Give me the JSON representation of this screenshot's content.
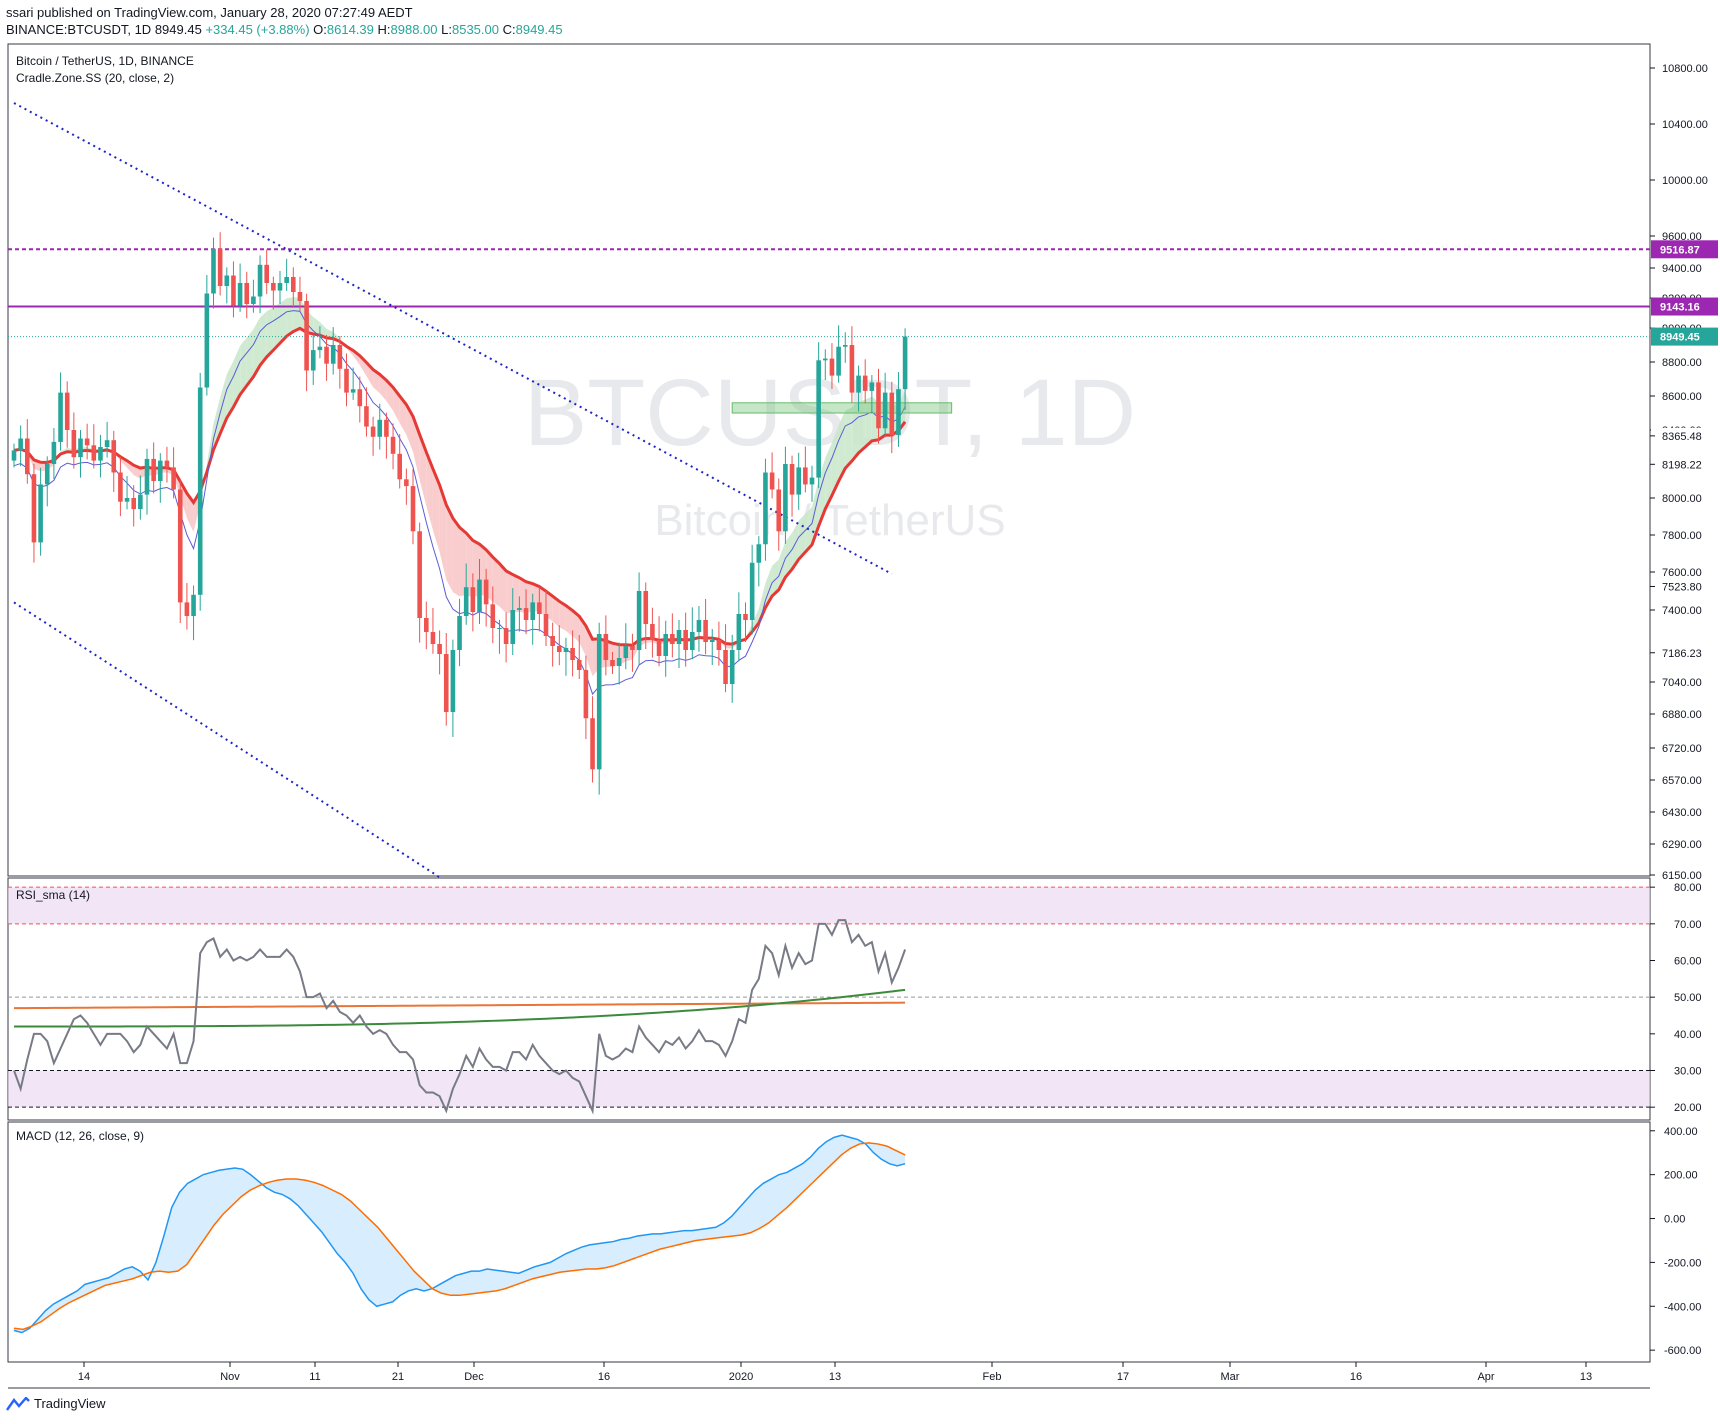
{
  "header": {
    "published": "ssari published on TradingView.com, January 28, 2020 07:27:49 AEDT",
    "symbol": "BINANCE:BTCUSDT, 1D",
    "last": "8949.45",
    "change": "+334.45 (+3.88%)",
    "o_label": "O:",
    "o": "8614.39",
    "h_label": "H:",
    "h": "8988.00",
    "l_label": "L:",
    "l": "8535.00",
    "c_label": "C:",
    "c": "8949.45"
  },
  "footer": {
    "brand": "TradingView"
  },
  "colors": {
    "up": "#26a69a",
    "down": "#ef5350",
    "channel": "#1c24c8",
    "level": "#9c27b0",
    "rsi": "#787b86",
    "rsi_sma_green": "#3c8a3c",
    "rsi_sma_orange": "#e8763a",
    "macd": "#2196f3",
    "signal": "#ff6d00",
    "zone_band": "#e9d5f0",
    "cradle_red": "#e53935"
  },
  "chart_data": [
    {
      "type": "candlestick",
      "title": "Bitcoin / TetherUS, 1D, BINANCE",
      "indicator_label": "Cradle.Zone.SS (20, close, 2)",
      "watermark_symbol": "BTCUSDT, 1D",
      "watermark_name": "Bitcoin / TetherUS",
      "x_ticks": [
        "14",
        "Nov",
        "11",
        "21",
        "Dec",
        "16",
        "2020",
        "13",
        "Feb",
        "17",
        "Mar",
        "16",
        "Apr",
        "13"
      ],
      "y_ticks": [
        "10800.00",
        "10400.00",
        "10000.00",
        "9600.00",
        "9400.00",
        "9200.00",
        "9000.00",
        "8800.00",
        "8600.00",
        "8400.00",
        "8000.00",
        "7800.00",
        "7600.00",
        "7400.00",
        "7040.00",
        "6880.00",
        "6720.00",
        "6570.00",
        "6430.00",
        "6290.00",
        "6150.00"
      ],
      "price_labels": [
        {
          "text": "9516.87",
          "price": 9516.87,
          "style": "level"
        },
        {
          "text": "9143.16",
          "price": 9143.16,
          "style": "level"
        },
        {
          "text": "8949.45",
          "price": 8949.45,
          "style": "last"
        },
        {
          "text": "8365.48",
          "price": 8365.48,
          "style": "plain"
        },
        {
          "text": "8198.22",
          "price": 8198.22,
          "style": "plain"
        },
        {
          "text": "7523.80",
          "price": 7523.8,
          "style": "plain"
        },
        {
          "text": "7186.23",
          "price": 7186.23,
          "style": "plain"
        }
      ],
      "horizontal_levels": [
        9516.87,
        9143.16
      ],
      "close": [
        8280,
        8350,
        8140,
        7760,
        8080,
        8200,
        8330,
        8620,
        8400,
        8240,
        8350,
        8310,
        8220,
        8300,
        8340,
        8150,
        7980,
        8000,
        7940,
        8020,
        8230,
        8100,
        8220,
        8180,
        8050,
        7440,
        7370,
        7480,
        8650,
        9230,
        9520,
        9280,
        9350,
        9150,
        9300,
        9160,
        9210,
        9420,
        9300,
        9250,
        9300,
        9340,
        9240,
        9180,
        8750,
        8870,
        8890,
        8790,
        8900,
        8760,
        8620,
        8640,
        8540,
        8420,
        8360,
        8460,
        8360,
        8260,
        8110,
        8070,
        7820,
        7360,
        7290,
        7230,
        7180,
        6890,
        7200,
        7370,
        7520,
        7390,
        7560,
        7430,
        7310,
        7310,
        7230,
        7400,
        7410,
        7350,
        7440,
        7380,
        7270,
        7220,
        7190,
        7210,
        7150,
        7100,
        6860,
        6620,
        7280,
        7150,
        7120,
        7160,
        7220,
        7200,
        7500,
        7330,
        7250,
        7170,
        7280,
        7230,
        7300,
        7200,
        7290,
        7350,
        7240,
        7250,
        7200,
        7030,
        7200,
        7380,
        7350,
        7650,
        7750,
        8150,
        8050,
        7820,
        8200,
        8020,
        8180,
        8080,
        8120,
        8810,
        8820,
        8720,
        8890,
        8900,
        8620,
        8720,
        8630,
        8680,
        8410,
        8620,
        8370,
        8640,
        8950
      ],
      "channel": {
        "upper": [
          [
            0,
            10550
          ],
          [
            132,
            7590
          ]
        ],
        "lower": [
          [
            0,
            7440
          ],
          [
            64,
            6140
          ]
        ]
      }
    },
    {
      "type": "line",
      "title": "RSI_sma (14)",
      "y_ticks": [
        "80.00",
        "70.00",
        "60.00",
        "50.00",
        "40.00",
        "30.00",
        "20.00"
      ],
      "ylim": [
        16.5,
        82.5
      ],
      "bands": [
        70,
        80,
        20,
        30
      ],
      "series": [
        {
          "name": "RSI",
          "values": [
            30,
            25,
            33,
            40,
            40,
            38,
            32,
            36,
            40,
            44,
            45,
            43,
            40,
            37,
            40,
            40,
            40,
            38,
            35,
            37,
            42,
            40,
            38,
            36,
            40,
            32,
            32,
            38,
            62,
            65,
            66,
            61,
            63,
            60,
            61,
            60,
            61,
            63,
            61,
            61,
            61,
            63,
            61,
            57,
            50,
            50,
            51,
            47,
            49,
            46,
            45,
            43,
            45,
            42,
            40,
            41,
            40,
            37,
            35,
            35,
            33,
            26,
            24,
            24,
            23,
            19,
            25,
            29,
            34,
            31,
            36,
            33,
            31,
            31,
            30,
            35,
            35,
            33,
            37,
            34,
            32,
            30,
            29,
            30,
            28,
            27,
            23,
            19,
            40,
            34,
            33,
            34,
            36,
            35,
            42,
            39,
            37,
            35,
            38,
            37,
            39,
            36,
            38,
            41,
            38,
            38,
            37,
            34,
            38,
            44,
            43,
            52,
            55,
            64,
            62,
            56,
            64,
            58,
            62,
            59,
            60,
            70,
            70,
            67,
            71,
            71,
            65,
            67,
            64,
            65,
            57,
            62,
            54,
            58,
            63
          ]
        },
        {
          "name": "SMA",
          "values": [
            42,
            52
          ]
        },
        {
          "name": "SMA2",
          "values": [
            47,
            48.5
          ]
        }
      ]
    },
    {
      "type": "line",
      "title": "MACD (12, 26, close, 9)",
      "y_ticks": [
        "400.00",
        "200.00",
        "0.00",
        "-200.00",
        "-400.00",
        "-600.00"
      ],
      "ylim": [
        -654,
        440
      ],
      "series": [
        {
          "name": "MACD",
          "values": [
            -510,
            -520,
            -500,
            -460,
            -420,
            -390,
            -370,
            -350,
            -330,
            -300,
            -290,
            -280,
            -270,
            -250,
            -230,
            -220,
            -240,
            -280,
            -200,
            -80,
            50,
            120,
            160,
            180,
            200,
            210,
            220,
            225,
            230,
            225,
            200,
            170,
            140,
            120,
            110,
            90,
            60,
            20,
            -20,
            -60,
            -110,
            -160,
            -200,
            -250,
            -320,
            -370,
            -400,
            -390,
            -380,
            -350,
            -330,
            -320,
            -330,
            -320,
            -300,
            -280,
            -260,
            -250,
            -240,
            -240,
            -230,
            -235,
            -240,
            -245,
            -250,
            -235,
            -220,
            -210,
            -200,
            -180,
            -160,
            -145,
            -130,
            -120,
            -115,
            -110,
            -105,
            -95,
            -90,
            -80,
            -75,
            -70,
            -70,
            -65,
            -60,
            -55,
            -55,
            -50,
            -45,
            -40,
            -20,
            10,
            50,
            90,
            130,
            160,
            180,
            200,
            210,
            230,
            250,
            280,
            320,
            350,
            370,
            380,
            370,
            360,
            340,
            300,
            270,
            250,
            240,
            250
          ]
        },
        {
          "name": "Signal",
          "values": [
            -500,
            -505,
            -490,
            -470,
            -440,
            -410,
            -385,
            -365,
            -345,
            -325,
            -305,
            -295,
            -285,
            -275,
            -260,
            -245,
            -240,
            -245,
            -240,
            -210,
            -150,
            -90,
            -30,
            20,
            60,
            100,
            130,
            150,
            165,
            175,
            180,
            180,
            175,
            165,
            150,
            130,
            110,
            80,
            40,
            0,
            -40,
            -90,
            -140,
            -190,
            -240,
            -280,
            -320,
            -340,
            -350,
            -350,
            -345,
            -340,
            -335,
            -330,
            -320,
            -305,
            -290,
            -275,
            -265,
            -255,
            -245,
            -240,
            -235,
            -230,
            -230,
            -225,
            -215,
            -200,
            -185,
            -170,
            -155,
            -140,
            -130,
            -120,
            -110,
            -100,
            -95,
            -90,
            -85,
            -80,
            -75,
            -65,
            -45,
            -20,
            15,
            50,
            90,
            130,
            170,
            210,
            250,
            290,
            320,
            340,
            345,
            340,
            330,
            310,
            290
          ]
        }
      ]
    }
  ]
}
